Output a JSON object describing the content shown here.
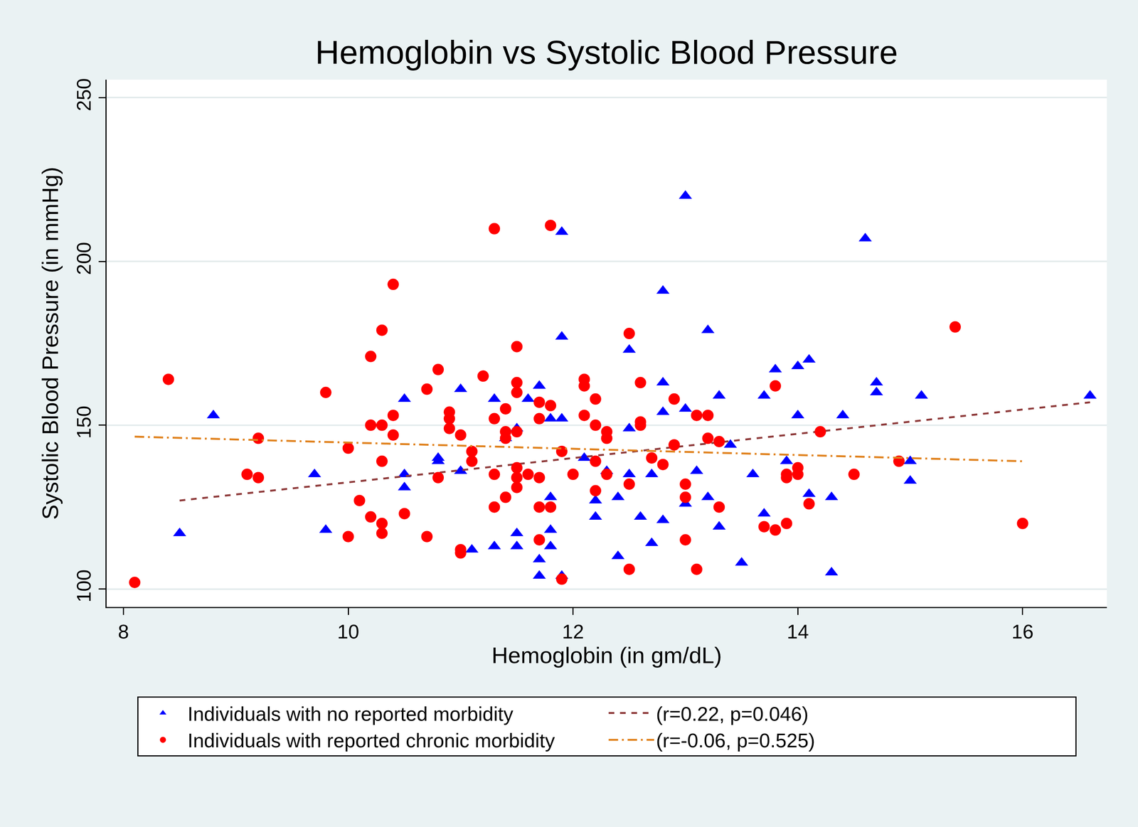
{
  "chart_data": {
    "type": "scatter",
    "title": "Hemoglobin vs Systolic Blood Pressure",
    "x_label": "Hemoglobin (in gm/dL)",
    "y_label": "Systolic Blood Pressure (in mmHg)",
    "xlim": [
      7.85,
      16.75
    ],
    "ylim": [
      94.5,
      255.5
    ],
    "xticks": [
      8,
      10,
      12,
      14,
      16
    ],
    "yticks": [
      100,
      150,
      200,
      250
    ],
    "grid": "y",
    "legend": "bottom",
    "series": [
      {
        "name": "Individuals with no reported morbidity",
        "type": "scatter",
        "color": "#0000ff",
        "marker": "triangle-up",
        "x": [
          8.5,
          8.8,
          9.7,
          9.8,
          10.5,
          10.5,
          10.5,
          10.8,
          10.8,
          11.0,
          11.0,
          11.1,
          11.3,
          11.3,
          11.4,
          11.5,
          11.5,
          11.5,
          11.6,
          11.7,
          11.7,
          11.7,
          11.8,
          11.8,
          11.8,
          11.8,
          11.9,
          11.9,
          11.9,
          11.9,
          12.1,
          12.2,
          12.2,
          12.3,
          12.4,
          12.4,
          12.5,
          12.5,
          12.5,
          12.6,
          12.7,
          12.7,
          12.8,
          12.8,
          12.8,
          12.8,
          13.0,
          13.0,
          13.0,
          13.1,
          13.2,
          13.2,
          13.3,
          13.3,
          13.4,
          13.5,
          13.6,
          13.7,
          13.7,
          13.8,
          13.9,
          14.0,
          14.0,
          14.1,
          14.1,
          14.3,
          14.3,
          14.4,
          14.6,
          14.7,
          14.7,
          15.0,
          15.0,
          15.1,
          16.6
        ],
        "values": [
          117,
          153,
          135,
          118,
          158,
          135,
          131,
          140,
          139,
          161,
          136,
          112,
          158,
          113,
          146,
          149,
          117,
          113,
          158,
          162,
          109,
          104,
          152,
          128,
          118,
          113,
          209,
          177,
          152,
          104,
          140,
          127,
          122,
          136,
          128,
          110,
          173,
          149,
          135,
          122,
          135,
          114,
          191,
          163,
          154,
          121,
          220,
          155,
          126,
          136,
          179,
          128,
          159,
          119,
          144,
          108,
          135,
          159,
          123,
          167,
          139,
          168,
          153,
          170,
          129,
          128,
          105,
          153,
          207,
          163,
          160,
          139,
          133,
          159,
          159
        ]
      },
      {
        "name": "(r=0.22, p=0.046)",
        "type": "line",
        "color": "#8e3a3a",
        "line_style": "dash",
        "x": [
          8.5,
          16.6
        ],
        "values": [
          127,
          157
        ]
      },
      {
        "name": "Individuals with reported chronic morbidity",
        "type": "scatter",
        "color": "#ff0000",
        "marker": "circle",
        "x": [
          8.1,
          8.4,
          9.1,
          9.2,
          9.2,
          9.8,
          10.0,
          10.0,
          10.1,
          10.2,
          10.2,
          10.2,
          10.3,
          10.3,
          10.3,
          10.3,
          10.3,
          10.4,
          10.4,
          10.4,
          10.5,
          10.7,
          10.7,
          10.8,
          10.8,
          10.9,
          10.9,
          10.9,
          11.0,
          11.0,
          11.0,
          11.1,
          11.1,
          11.2,
          11.3,
          11.3,
          11.3,
          11.3,
          11.4,
          11.4,
          11.4,
          11.4,
          11.5,
          11.5,
          11.5,
          11.5,
          11.5,
          11.5,
          11.5,
          11.6,
          11.7,
          11.7,
          11.7,
          11.7,
          11.7,
          11.8,
          11.8,
          11.8,
          11.9,
          11.9,
          12.0,
          12.1,
          12.1,
          12.1,
          12.2,
          12.2,
          12.2,
          12.2,
          12.3,
          12.3,
          12.3,
          12.5,
          12.5,
          12.5,
          12.6,
          12.6,
          12.6,
          12.7,
          12.8,
          12.9,
          12.9,
          13.0,
          13.0,
          13.0,
          13.1,
          13.1,
          13.2,
          13.2,
          13.3,
          13.3,
          13.7,
          13.8,
          13.8,
          13.9,
          13.9,
          13.9,
          14.0,
          14.0,
          14.1,
          14.2,
          14.5,
          14.9,
          15.4,
          16.0
        ],
        "values": [
          102,
          164,
          135,
          146,
          134,
          160,
          143,
          116,
          127,
          171,
          150,
          122,
          179,
          150,
          139,
          120,
          117,
          193,
          153,
          147,
          123,
          161,
          116,
          167,
          134,
          154,
          152,
          149,
          147,
          112,
          111,
          142,
          139,
          165,
          210,
          152,
          135,
          125,
          155,
          148,
          146,
          128,
          174,
          163,
          160,
          148,
          137,
          134,
          131,
          135,
          157,
          152,
          134,
          125,
          115,
          211,
          156,
          125,
          142,
          103,
          135,
          164,
          162,
          153,
          158,
          150,
          139,
          130,
          148,
          146,
          135,
          178,
          132,
          106,
          163,
          151,
          150,
          140,
          138,
          158,
          144,
          132,
          128,
          115,
          153,
          106,
          153,
          146,
          145,
          125,
          119,
          162,
          118,
          135,
          134,
          120,
          137,
          135,
          126,
          148,
          135,
          139,
          180,
          120
        ]
      },
      {
        "name": "(r=-0.06, p=0.525)",
        "type": "line",
        "color": "#e0821e",
        "line_style": "longdashdot",
        "x": [
          8.1,
          16.0
        ],
        "values": [
          146.5,
          139
        ]
      }
    ]
  }
}
